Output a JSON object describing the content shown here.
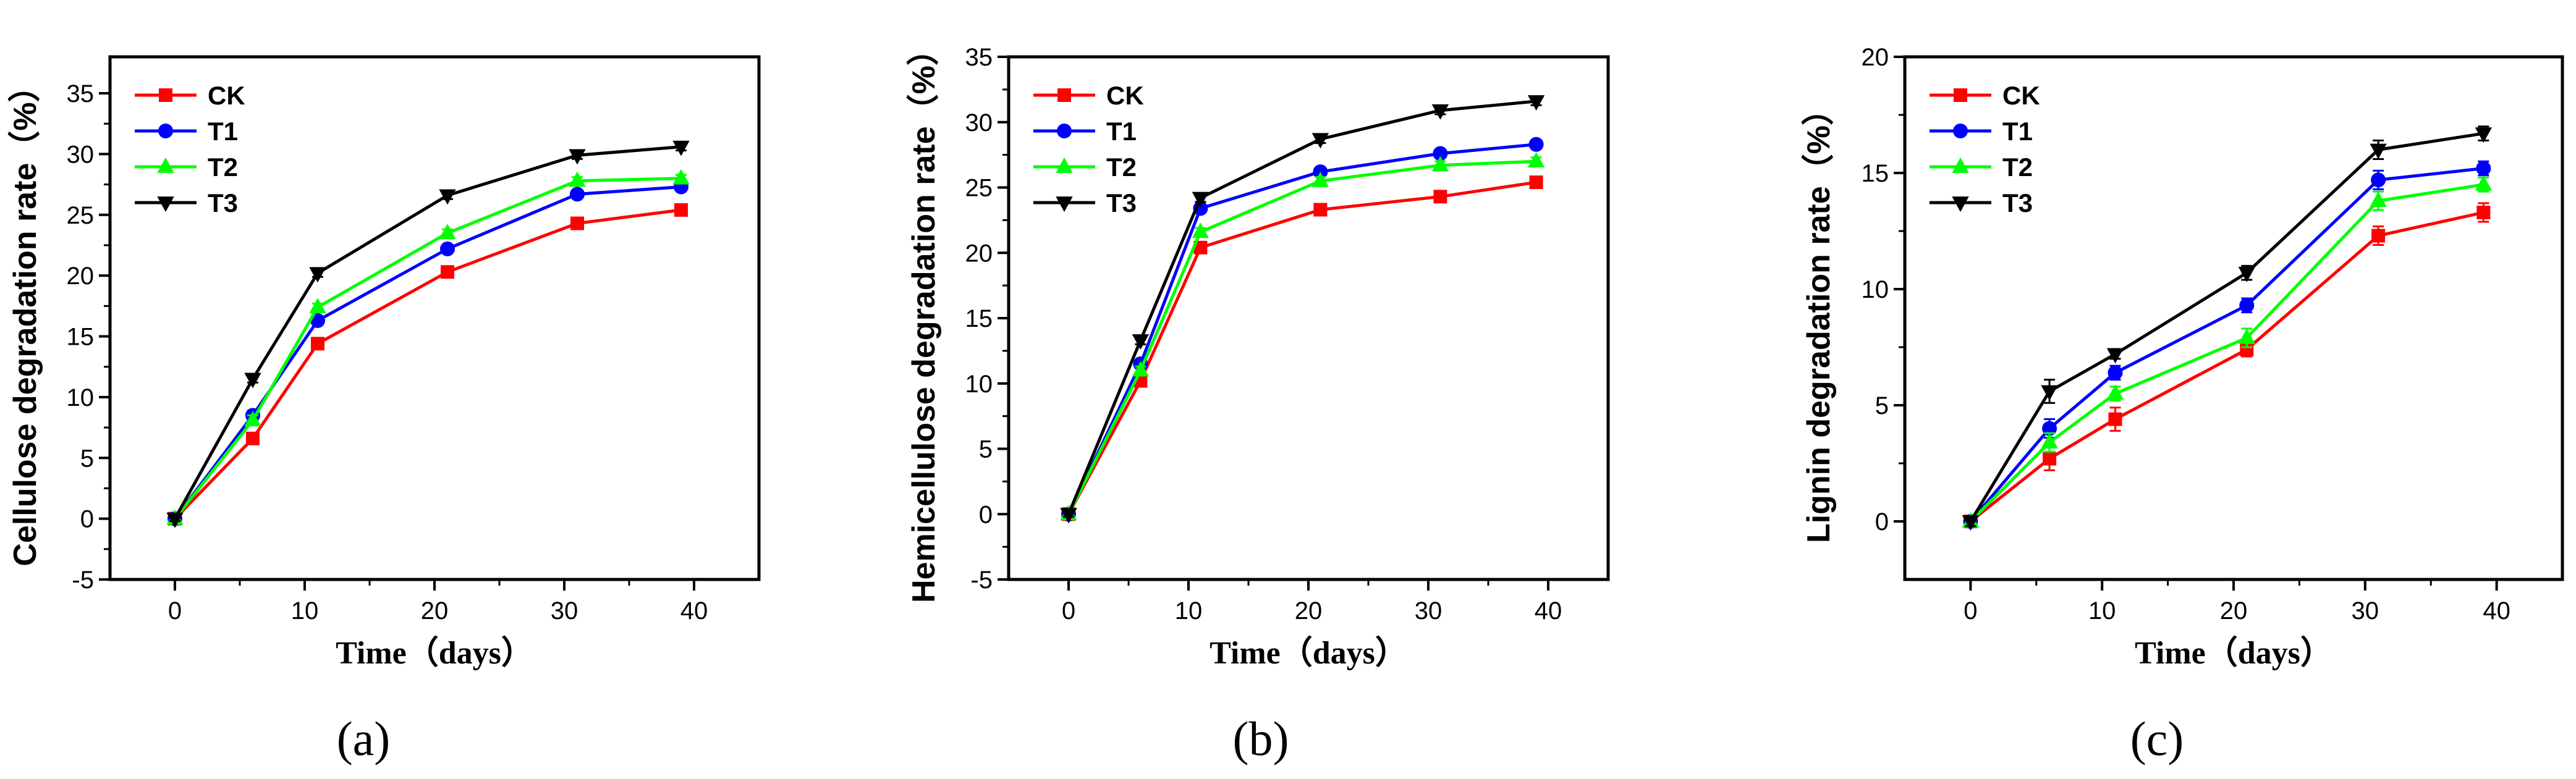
{
  "chart_data": [
    {
      "type": "line",
      "panel_label": "(a)",
      "xlabel": "Time（days）",
      "ylabel": "Cellulose degradation rate（%）",
      "xlim": [
        -5,
        45
      ],
      "ylim": [
        -5,
        38
      ],
      "xticks": [
        0,
        10,
        20,
        30,
        40
      ],
      "yticks": [
        -5,
        0,
        5,
        10,
        15,
        20,
        25,
        30,
        35
      ],
      "legend_position": "top-left",
      "series": [
        {
          "name": "CK",
          "color": "#ff0000",
          "marker": "square",
          "x": [
            0,
            6,
            11,
            21,
            31,
            39
          ],
          "y": [
            0,
            6.6,
            14.4,
            20.3,
            24.3,
            25.4
          ],
          "err": [
            0.2,
            0.3,
            0.3,
            0.3,
            0.3,
            0.3
          ]
        },
        {
          "name": "T1",
          "color": "#0000ff",
          "marker": "circle",
          "x": [
            0,
            6,
            11,
            21,
            31,
            39
          ],
          "y": [
            0,
            8.5,
            16.3,
            22.2,
            26.7,
            27.3
          ],
          "err": [
            0.2,
            0.4,
            0.3,
            0.3,
            0.3,
            0.3
          ]
        },
        {
          "name": "T2",
          "color": "#00ff00",
          "marker": "triangle-up",
          "x": [
            0,
            6,
            11,
            21,
            31,
            39
          ],
          "y": [
            0,
            8.1,
            17.4,
            23.5,
            27.8,
            28.0
          ],
          "err": [
            0.2,
            0.4,
            0.3,
            0.3,
            0.3,
            0.3
          ]
        },
        {
          "name": "T3",
          "color": "#000000",
          "marker": "triangle-down",
          "x": [
            0,
            6,
            11,
            21,
            31,
            39
          ],
          "y": [
            0,
            11.5,
            20.2,
            26.6,
            29.9,
            30.6
          ],
          "err": [
            0.2,
            0.3,
            0.3,
            0.3,
            0.3,
            0.3
          ]
        }
      ]
    },
    {
      "type": "line",
      "panel_label": "(b)",
      "xlabel": "Time（days）",
      "ylabel": "Hemicellulose degradation rate（%）",
      "xlim": [
        -5,
        45
      ],
      "ylim": [
        -5,
        35
      ],
      "xticks": [
        0,
        10,
        20,
        30,
        40
      ],
      "yticks": [
        -5,
        0,
        5,
        10,
        15,
        20,
        25,
        30,
        35
      ],
      "legend_position": "top-left",
      "series": [
        {
          "name": "CK",
          "color": "#ff0000",
          "marker": "square",
          "x": [
            0,
            6,
            11,
            21,
            31,
            39
          ],
          "y": [
            0,
            10.2,
            20.4,
            23.3,
            24.3,
            25.4
          ],
          "err": [
            0.2,
            0.3,
            0.3,
            0.3,
            0.3,
            0.3
          ]
        },
        {
          "name": "T1",
          "color": "#0000ff",
          "marker": "circle",
          "x": [
            0,
            6,
            11,
            21,
            31,
            39
          ],
          "y": [
            0,
            11.5,
            23.4,
            26.2,
            27.6,
            28.3
          ],
          "err": [
            0.2,
            0.3,
            0.3,
            0.3,
            0.3,
            0.3
          ]
        },
        {
          "name": "T2",
          "color": "#00ff00",
          "marker": "triangle-up",
          "x": [
            0,
            6,
            11,
            21,
            31,
            39
          ],
          "y": [
            0,
            11.0,
            21.6,
            25.5,
            26.7,
            27.0
          ],
          "err": [
            0.2,
            0.3,
            0.3,
            0.3,
            0.3,
            0.3
          ]
        },
        {
          "name": "T3",
          "color": "#000000",
          "marker": "triangle-down",
          "x": [
            0,
            6,
            11,
            21,
            31,
            39
          ],
          "y": [
            0,
            13.3,
            24.2,
            28.7,
            30.9,
            31.6
          ],
          "err": [
            0.2,
            0.3,
            0.3,
            0.3,
            0.3,
            0.3
          ]
        }
      ]
    },
    {
      "type": "line",
      "panel_label": "(c)",
      "xlabel": "Time（days）",
      "ylabel": "Lignin degradation rate（%）",
      "xlim": [
        -5,
        45
      ],
      "ylim": [
        -2.5,
        20
      ],
      "xticks": [
        0,
        10,
        20,
        30,
        40
      ],
      "yticks": [
        0,
        5,
        10,
        15,
        20
      ],
      "legend_position": "top-left",
      "series": [
        {
          "name": "CK",
          "color": "#ff0000",
          "marker": "square",
          "x": [
            0,
            6,
            11,
            21,
            31,
            39
          ],
          "y": [
            0,
            2.7,
            4.4,
            7.4,
            12.3,
            13.3
          ],
          "err": [
            0.2,
            0.5,
            0.5,
            0.3,
            0.4,
            0.4
          ]
        },
        {
          "name": "T1",
          "color": "#0000ff",
          "marker": "circle",
          "x": [
            0,
            6,
            11,
            21,
            31,
            39
          ],
          "y": [
            0,
            4.0,
            6.4,
            9.3,
            14.7,
            15.2
          ],
          "err": [
            0.2,
            0.4,
            0.3,
            0.3,
            0.4,
            0.3
          ]
        },
        {
          "name": "T2",
          "color": "#00ff00",
          "marker": "triangle-up",
          "x": [
            0,
            6,
            11,
            21,
            31,
            39
          ],
          "y": [
            0,
            3.4,
            5.5,
            7.9,
            13.8,
            14.5
          ],
          "err": [
            0.2,
            0.4,
            0.3,
            0.4,
            0.4,
            0.3
          ]
        },
        {
          "name": "T3",
          "color": "#000000",
          "marker": "triangle-down",
          "x": [
            0,
            6,
            11,
            21,
            31,
            39
          ],
          "y": [
            0,
            5.6,
            7.2,
            10.7,
            16.0,
            16.7
          ],
          "err": [
            0.2,
            0.5,
            0.2,
            0.3,
            0.4,
            0.3
          ]
        }
      ]
    }
  ]
}
